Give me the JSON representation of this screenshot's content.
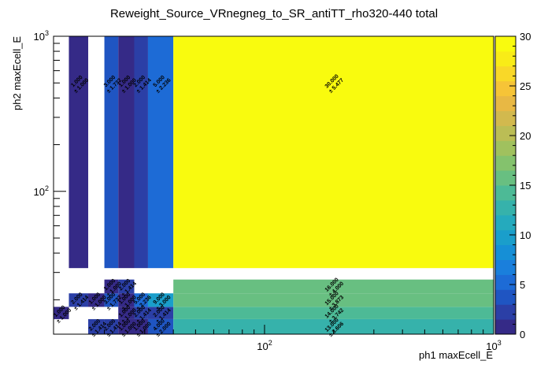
{
  "chart_data": {
    "type": "heatmap",
    "title": "Reweight_Source_VRnegneg_to_SR_antiTT_rho320-440 total",
    "xlabel": "ph1 maxEcell_E",
    "ylabel": "ph2 maxEcell_E",
    "xscale": "log",
    "yscale": "log",
    "xlim": [
      12,
      1000
    ],
    "ylim": [
      12,
      1000
    ],
    "x_ticks": [
      {
        "base": "10",
        "exp": "2",
        "value": 100
      },
      {
        "base": "10",
        "exp": "3",
        "value": 1000
      }
    ],
    "y_ticks": [
      {
        "base": "10",
        "exp": "2",
        "value": 100
      },
      {
        "base": "10",
        "exp": "3",
        "value": 1000
      }
    ],
    "x_edges": [
      12,
      14,
      17,
      20,
      23,
      27,
      31,
      40,
      1000
    ],
    "y_edges": [
      12,
      15,
      18,
      22,
      27,
      32,
      1000
    ],
    "colorbar": {
      "min": 0,
      "max": 30,
      "ticks": [
        0,
        5,
        10,
        15,
        20,
        25,
        30
      ]
    },
    "cells": [
      {
        "ix": 0,
        "iy": 1,
        "value": 1.0,
        "label": "1.000",
        "error": "± 1.000"
      },
      {
        "ix": 1,
        "iy": 2,
        "value": 2.0,
        "label": "2.000",
        "error": "± 1.414"
      },
      {
        "ix": 1,
        "iy": 5,
        "value": 1.0,
        "label": "1.000",
        "error": "± 1.000"
      },
      {
        "ix": 2,
        "iy": 0,
        "value": 2.0,
        "label": "2.000",
        "error": "± 1.414"
      },
      {
        "ix": 2,
        "iy": 2,
        "value": 1.0,
        "label": "1.000",
        "error": "± 1.000"
      },
      {
        "ix": 3,
        "iy": 0,
        "value": 2.0,
        "label": "2.000",
        "error": "± 1.414"
      },
      {
        "ix": 3,
        "iy": 2,
        "value": 3.0,
        "label": "3.000",
        "error": "± 1.732"
      },
      {
        "ix": 3,
        "iy": 3,
        "value": 1.0,
        "label": "1.000",
        "error": "± 1.000"
      },
      {
        "ix": 3,
        "iy": 5,
        "value": 3.0,
        "label": "3.000",
        "error": "± 1.732"
      },
      {
        "ix": 4,
        "iy": 0,
        "value": 1.0,
        "label": "1.000",
        "error": "± 1.000"
      },
      {
        "ix": 4,
        "iy": 1,
        "value": 1.0,
        "label": "1.000",
        "error": "± 1.000"
      },
      {
        "ix": 4,
        "iy": 2,
        "value": 1.0,
        "label": "1.000",
        "error": "± 1.000"
      },
      {
        "ix": 4,
        "iy": 3,
        "value": 2.0,
        "label": "2.000",
        "error": "± 1.414"
      },
      {
        "ix": 4,
        "iy": 5,
        "value": 1.0,
        "label": "1.000",
        "error": "± 1.000"
      },
      {
        "ix": 5,
        "iy": 0,
        "value": 1.0,
        "label": "1.000",
        "error": "± 1.000"
      },
      {
        "ix": 5,
        "iy": 1,
        "value": 2.0,
        "label": "2.000",
        "error": "± 1.414"
      },
      {
        "ix": 5,
        "iy": 2,
        "value": 5.0,
        "label": "5.000",
        "error": "± 2.236"
      },
      {
        "ix": 5,
        "iy": 5,
        "value": 2.0,
        "label": "2.000",
        "error": "± 1.414"
      },
      {
        "ix": 6,
        "iy": 0,
        "value": 4.0,
        "label": "4.000",
        "error": "± 2.000"
      },
      {
        "ix": 6,
        "iy": 1,
        "value": 2.0,
        "label": "2.000",
        "error": "± 1.414"
      },
      {
        "ix": 6,
        "iy": 2,
        "value": 9.0,
        "label": "9.000",
        "error": "± 3.000"
      },
      {
        "ix": 6,
        "iy": 5,
        "value": 5.0,
        "label": "5.000",
        "error": "± 2.236"
      },
      {
        "ix": 7,
        "iy": 0,
        "value": 13.0,
        "label": "13.000",
        "error": "± 3.606"
      },
      {
        "ix": 7,
        "iy": 1,
        "value": 14.0,
        "label": "14.000",
        "error": "± 3.742"
      },
      {
        "ix": 7,
        "iy": 2,
        "value": 15.0,
        "label": "15.000",
        "error": "± 3.873"
      },
      {
        "ix": 7,
        "iy": 3,
        "value": 16.0,
        "label": "16.000",
        "error": "± 4.000"
      },
      {
        "ix": 7,
        "iy": 5,
        "value": 30.0,
        "label": "30.000",
        "error": "± 5.477"
      }
    ]
  },
  "palette": [
    "#352a87",
    "#2b3fa6",
    "#1f55c2",
    "#1d6bd6",
    "#1a7fdc",
    "#168fd6",
    "#1a9ecb",
    "#25aabd",
    "#36b2ab",
    "#4dba96",
    "#68bf81",
    "#84c26d",
    "#a0c15e",
    "#bbbd55",
    "#d2b94e",
    "#e8b844",
    "#f6c437",
    "#f9d828",
    "#f9ec17",
    "#f9fb0e"
  ]
}
